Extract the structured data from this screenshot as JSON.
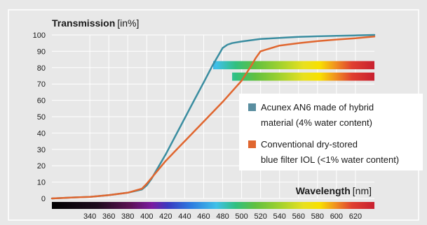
{
  "chart_data": {
    "type": "line",
    "ylabel": {
      "main": "Transmission",
      "unit": "[in%]"
    },
    "xlabel": {
      "main": "Wavelength",
      "unit": "[nm]"
    },
    "xlim": [
      300,
      640
    ],
    "ylim": [
      0,
      100
    ],
    "y_ticks": [
      0,
      10,
      20,
      30,
      40,
      50,
      60,
      70,
      80,
      90,
      100
    ],
    "x_ticks": [
      340,
      360,
      380,
      400,
      420,
      440,
      460,
      480,
      500,
      520,
      540,
      560,
      580,
      600,
      620
    ],
    "grid": true,
    "legend_position": "center-right",
    "series": [
      {
        "name_lines": [
          "Acunex AN6 made of hybrid",
          "material (4% water content)"
        ],
        "color": "#3a8da0",
        "x": [
          300,
          320,
          340,
          360,
          380,
          395,
          400,
          405,
          410,
          420,
          430,
          440,
          450,
          460,
          470,
          480,
          485,
          490,
          500,
          520,
          540,
          560,
          580,
          600,
          620,
          640
        ],
        "y": [
          0,
          0.5,
          1,
          2,
          3.5,
          5.5,
          8,
          12,
          17,
          27,
          38,
          49,
          60,
          71,
          82,
          92,
          94,
          95,
          96,
          97.5,
          98.2,
          98.8,
          99.2,
          99.5,
          99.7,
          100
        ]
      },
      {
        "name_lines": [
          "Conventional dry-stored",
          "blue filter IOL (<1% water content)"
        ],
        "color": "#e0662f",
        "x": [
          300,
          320,
          340,
          360,
          380,
          395,
          400,
          410,
          420,
          430,
          440,
          460,
          480,
          500,
          510,
          515,
          520,
          540,
          560,
          580,
          600,
          620,
          640
        ],
        "y": [
          0,
          0.5,
          1,
          2,
          3.5,
          6,
          9,
          16,
          23,
          29,
          35,
          47,
          59,
          72,
          81,
          86,
          90,
          93.5,
          95,
          96.2,
          97.2,
          98,
          99
        ]
      }
    ],
    "spectrum_bars": [
      {
        "label_ref": "series_0",
        "x_start": 470,
        "x_end": 640,
        "y_center": 81.5
      },
      {
        "label_ref": "series_1",
        "x_start": 490,
        "x_end": 640,
        "y_center": 74.5
      }
    ]
  }
}
